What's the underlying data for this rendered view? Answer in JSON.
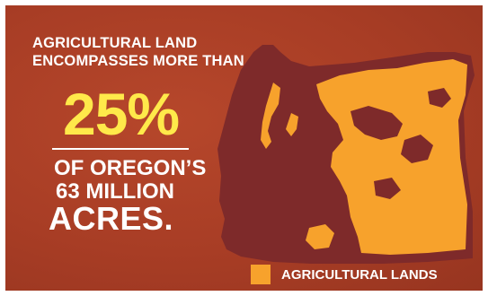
{
  "headline": {
    "line1": "AGRICULTURAL LAND",
    "line2": "ENCOMPASSES MORE THAN"
  },
  "stat": {
    "value": "25%",
    "line1": "OF OREGON’S",
    "line2": "63 MILLION",
    "line3": "ACRES."
  },
  "legend": {
    "label": "AGRICULTURAL LANDS",
    "color": "#f7a22c"
  },
  "map": {
    "region": "Oregon",
    "state_color": "#7e2a2a",
    "agricultural_color": "#f7a22c",
    "background_color": "#a83d25"
  }
}
